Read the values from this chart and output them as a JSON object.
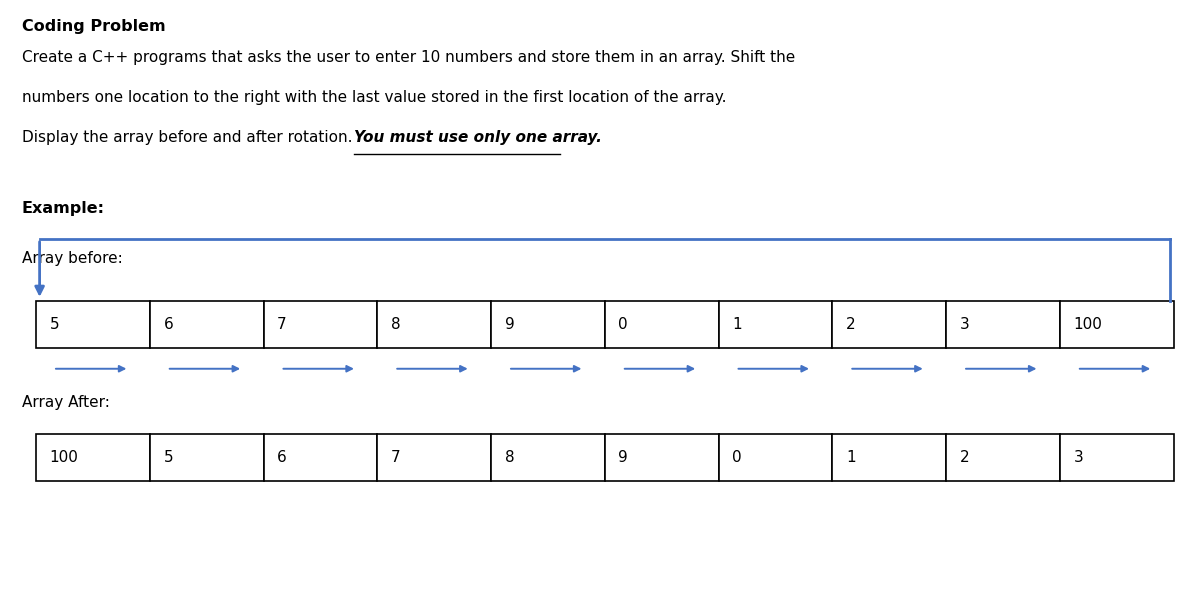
{
  "title": "Coding Problem",
  "desc_lines": [
    "Create a C++ programs that asks the user to enter 10 numbers and store them in an array. Shift the",
    "numbers one location to the right with the last value stored in the first location of the array.",
    "Display the array before and after rotation. "
  ],
  "desc_bold_italic_underline": "You must use only one array.",
  "example_label": "Example:",
  "before_label": "Array before:",
  "after_label": "Array After:",
  "before_array": [
    "5",
    "6",
    "7",
    "8",
    "9",
    "0",
    "1",
    "2",
    "3",
    "100"
  ],
  "after_array": [
    "100",
    "5",
    "6",
    "7",
    "8",
    "9",
    "0",
    "1",
    "2",
    "3"
  ],
  "bg_color": "#ffffff",
  "text_color": "#000000",
  "arrow_color": "#4472C4",
  "cell_line_color": "#000000",
  "figsize": [
    12.0,
    5.9
  ],
  "dpi": 100
}
